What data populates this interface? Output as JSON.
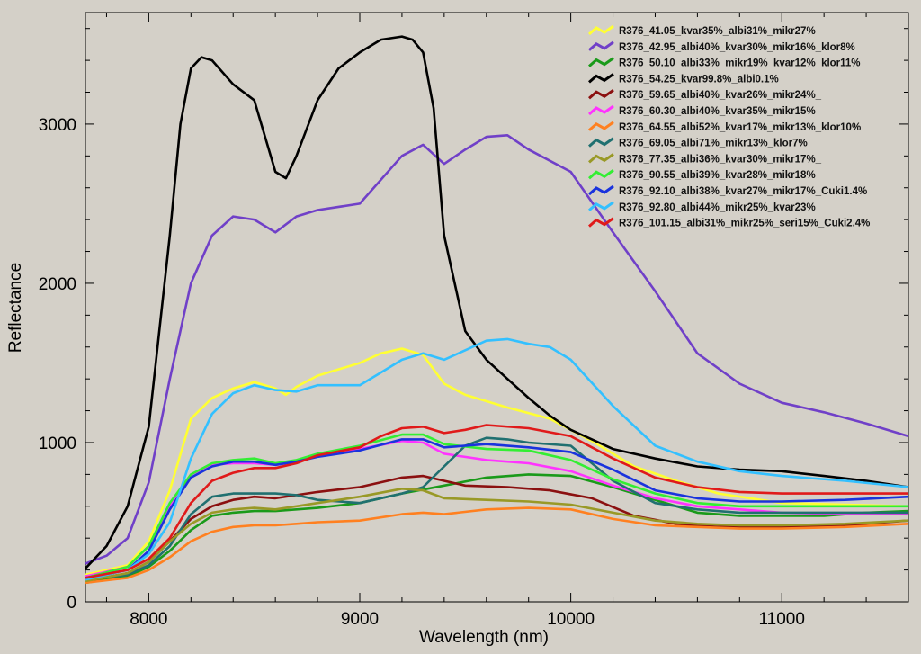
{
  "chart_data": {
    "type": "line",
    "title": "",
    "xlabel": "Wavelength (nm)",
    "ylabel": "Reflectance",
    "xlim": [
      7700,
      11600
    ],
    "ylim": [
      0,
      3700
    ],
    "xticks": [
      8000,
      9000,
      10000,
      11000
    ],
    "yticks": [
      0,
      1000,
      2000,
      3000
    ],
    "legend_position": "top-right",
    "grid": false,
    "background": "#d4d0c8",
    "series": [
      {
        "name": "R376_41.05_kvar35%_albi31%_mikr27%",
        "color": "#ffff33",
        "x": [
          7700,
          7900,
          8000,
          8100,
          8200,
          8300,
          8400,
          8500,
          8600,
          8650,
          8700,
          8800,
          9000,
          9100,
          9200,
          9300,
          9400,
          9500,
          9700,
          9900,
          10100,
          10300,
          10500,
          10700,
          11000,
          11300,
          11600
        ],
        "y": [
          170,
          230,
          380,
          700,
          1150,
          1280,
          1340,
          1380,
          1340,
          1300,
          1350,
          1420,
          1500,
          1560,
          1590,
          1550,
          1370,
          1300,
          1220,
          1150,
          1010,
          850,
          760,
          680,
          620,
          610,
          600
        ]
      },
      {
        "name": "R376_42.95_albi40%_kvar30%_mikr16%_klor8%",
        "color": "#7040c8",
        "x": [
          7700,
          7800,
          7900,
          8000,
          8100,
          8200,
          8300,
          8400,
          8500,
          8600,
          8700,
          8800,
          9000,
          9200,
          9300,
          9400,
          9500,
          9600,
          9700,
          9800,
          10000,
          10200,
          10400,
          10600,
          10800,
          11000,
          11200,
          11400,
          11600
        ],
        "y": [
          240,
          290,
          400,
          750,
          1400,
          2000,
          2300,
          2420,
          2400,
          2320,
          2420,
          2460,
          2500,
          2800,
          2870,
          2750,
          2840,
          2920,
          2930,
          2840,
          2700,
          2320,
          1950,
          1560,
          1370,
          1250,
          1190,
          1120,
          1040
        ]
      },
      {
        "name": "R376_50.10_albi33%_mikr19%_kvar12%_klor11%",
        "color": "#1a9a1a",
        "x": [
          7700,
          7900,
          8000,
          8100,
          8200,
          8300,
          8400,
          8500,
          8600,
          8700,
          8800,
          9000,
          9200,
          9400,
          9600,
          9800,
          10000,
          10200,
          10400,
          10600,
          10800,
          11000,
          11200,
          11400,
          11600
        ],
        "y": [
          120,
          160,
          220,
          320,
          450,
          540,
          560,
          570,
          570,
          580,
          590,
          620,
          680,
          730,
          780,
          800,
          790,
          720,
          640,
          560,
          540,
          540,
          540,
          560,
          570
        ]
      },
      {
        "name": "R376_54.25_kvar99.8%_albi0.1%",
        "color": "#000000",
        "x": [
          7700,
          7800,
          7900,
          8000,
          8100,
          8150,
          8200,
          8250,
          8300,
          8400,
          8500,
          8600,
          8650,
          8700,
          8800,
          8900,
          9000,
          9100,
          9200,
          9250,
          9300,
          9350,
          9400,
          9500,
          9600,
          9700,
          9800,
          9900,
          10000,
          10200,
          10400,
          10600,
          10800,
          11000,
          11200,
          11400,
          11600
        ],
        "y": [
          210,
          350,
          600,
          1100,
          2300,
          3000,
          3350,
          3420,
          3400,
          3250,
          3150,
          2700,
          2660,
          2800,
          3150,
          3350,
          3450,
          3530,
          3550,
          3530,
          3450,
          3100,
          2300,
          1700,
          1520,
          1400,
          1280,
          1170,
          1080,
          960,
          900,
          850,
          830,
          820,
          790,
          760,
          720
        ]
      },
      {
        "name": "R376_59.65_albi40%_kvar26%_mikr24%_",
        "color": "#8b1010",
        "x": [
          7700,
          7900,
          8000,
          8100,
          8200,
          8300,
          8400,
          8500,
          8600,
          8700,
          8800,
          9000,
          9200,
          9300,
          9400,
          9500,
          9700,
          9900,
          10100,
          10300,
          10500,
          10700,
          11000,
          11300,
          11600
        ],
        "y": [
          130,
          180,
          250,
          380,
          520,
          600,
          640,
          660,
          650,
          670,
          690,
          720,
          780,
          790,
          760,
          730,
          720,
          700,
          650,
          540,
          490,
          470,
          470,
          480,
          510
        ]
      },
      {
        "name": "R376_60.30_albi40%_kvar35%_mikr15%",
        "color": "#ff33ff",
        "x": [
          7700,
          7900,
          8000,
          8100,
          8200,
          8300,
          8400,
          8500,
          8600,
          8700,
          8800,
          9000,
          9200,
          9300,
          9400,
          9600,
          9800,
          10000,
          10200,
          10400,
          10600,
          10800,
          11000,
          11300,
          11600
        ],
        "y": [
          160,
          220,
          350,
          600,
          800,
          860,
          870,
          870,
          860,
          880,
          920,
          960,
          1010,
          1000,
          930,
          890,
          870,
          820,
          730,
          650,
          600,
          580,
          560,
          550,
          550
        ]
      },
      {
        "name": "R376_64.55_albi52%_kvar17%_mikr13%_klor10%",
        "color": "#ff8020",
        "x": [
          7700,
          7900,
          8000,
          8100,
          8200,
          8300,
          8400,
          8500,
          8600,
          8700,
          8800,
          9000,
          9200,
          9300,
          9400,
          9600,
          9800,
          10000,
          10200,
          10400,
          10600,
          10800,
          11000,
          11300,
          11600
        ],
        "y": [
          120,
          150,
          200,
          280,
          380,
          440,
          470,
          480,
          480,
          490,
          500,
          510,
          550,
          560,
          550,
          580,
          590,
          580,
          520,
          480,
          470,
          460,
          460,
          470,
          490
        ]
      },
      {
        "name": "R376_69.05_albi71%_mikr13%_klor7%",
        "color": "#207070",
        "x": [
          7700,
          7900,
          8000,
          8100,
          8200,
          8300,
          8400,
          8500,
          8600,
          8700,
          8800,
          9000,
          9200,
          9300,
          9400,
          9500,
          9600,
          9700,
          9800,
          10000,
          10200,
          10400,
          10600,
          10800,
          11000,
          11300,
          11600
        ],
        "y": [
          140,
          170,
          230,
          350,
          550,
          660,
          680,
          680,
          680,
          670,
          640,
          620,
          680,
          720,
          850,
          980,
          1030,
          1020,
          1000,
          980,
          760,
          620,
          580,
          560,
          560,
          560,
          560
        ]
      },
      {
        "name": "R376_77.35_albi36%_kvar30%_mikr17%_",
        "color": "#999926",
        "x": [
          7700,
          7900,
          8000,
          8100,
          8200,
          8300,
          8400,
          8500,
          8600,
          8700,
          8800,
          9000,
          9200,
          9300,
          9400,
          9600,
          9800,
          10000,
          10200,
          10400,
          10600,
          10800,
          11000,
          11300,
          11600
        ],
        "y": [
          130,
          180,
          250,
          380,
          490,
          560,
          580,
          590,
          580,
          600,
          620,
          660,
          710,
          700,
          650,
          640,
          630,
          610,
          560,
          510,
          490,
          480,
          480,
          490,
          510
        ]
      },
      {
        "name": "R376_90.55_albi39%_kvar28%_mikr18%",
        "color": "#33ee33",
        "x": [
          7700,
          7900,
          8000,
          8100,
          8200,
          8300,
          8400,
          8500,
          8600,
          8700,
          8800,
          9000,
          9200,
          9300,
          9400,
          9600,
          9800,
          10000,
          10200,
          10400,
          10600,
          10800,
          11000,
          11300,
          11600
        ],
        "y": [
          150,
          220,
          350,
          620,
          800,
          870,
          890,
          900,
          870,
          890,
          930,
          980,
          1050,
          1050,
          990,
          960,
          950,
          890,
          770,
          680,
          620,
          600,
          600,
          600,
          600
        ]
      },
      {
        "name": "R376_92.10_albi38%_kvar27%_mikr17%_Cuki1.4%",
        "color": "#1a33dd",
        "x": [
          7700,
          7900,
          8000,
          8100,
          8200,
          8300,
          8400,
          8500,
          8600,
          8700,
          8800,
          9000,
          9200,
          9300,
          9400,
          9600,
          9800,
          10000,
          10200,
          10400,
          10600,
          10800,
          11000,
          11300,
          11600
        ],
        "y": [
          150,
          200,
          320,
          580,
          780,
          850,
          880,
          880,
          860,
          880,
          910,
          950,
          1020,
          1020,
          970,
          990,
          970,
          940,
          830,
          700,
          650,
          630,
          630,
          640,
          660
        ]
      },
      {
        "name": "R376_92.80_albi44%_mikr25%_kvar23%",
        "color": "#33c0ff",
        "x": [
          7700,
          7900,
          8000,
          8100,
          8200,
          8300,
          8400,
          8500,
          8600,
          8700,
          8800,
          9000,
          9100,
          9200,
          9300,
          9400,
          9500,
          9600,
          9700,
          9800,
          9900,
          10000,
          10200,
          10400,
          10600,
          10800,
          11000,
          11300,
          11600
        ],
        "y": [
          140,
          200,
          300,
          500,
          900,
          1180,
          1310,
          1360,
          1330,
          1320,
          1360,
          1360,
          1440,
          1520,
          1560,
          1520,
          1580,
          1640,
          1650,
          1620,
          1600,
          1520,
          1230,
          980,
          880,
          820,
          790,
          760,
          720
        ]
      },
      {
        "name": "R376_101.15_albi31%_mikr25%_seri15%_Cuki2.4%",
        "color": "#e01a1a",
        "x": [
          7700,
          7900,
          8000,
          8100,
          8200,
          8300,
          8400,
          8500,
          8600,
          8700,
          8800,
          9000,
          9100,
          9200,
          9300,
          9400,
          9500,
          9600,
          9800,
          10000,
          10200,
          10400,
          10600,
          10800,
          11000,
          11300,
          11600
        ],
        "y": [
          150,
          200,
          270,
          400,
          620,
          760,
          810,
          840,
          840,
          870,
          920,
          970,
          1040,
          1090,
          1100,
          1060,
          1080,
          1110,
          1090,
          1040,
          900,
          780,
          720,
          690,
          680,
          680,
          680
        ]
      }
    ]
  }
}
